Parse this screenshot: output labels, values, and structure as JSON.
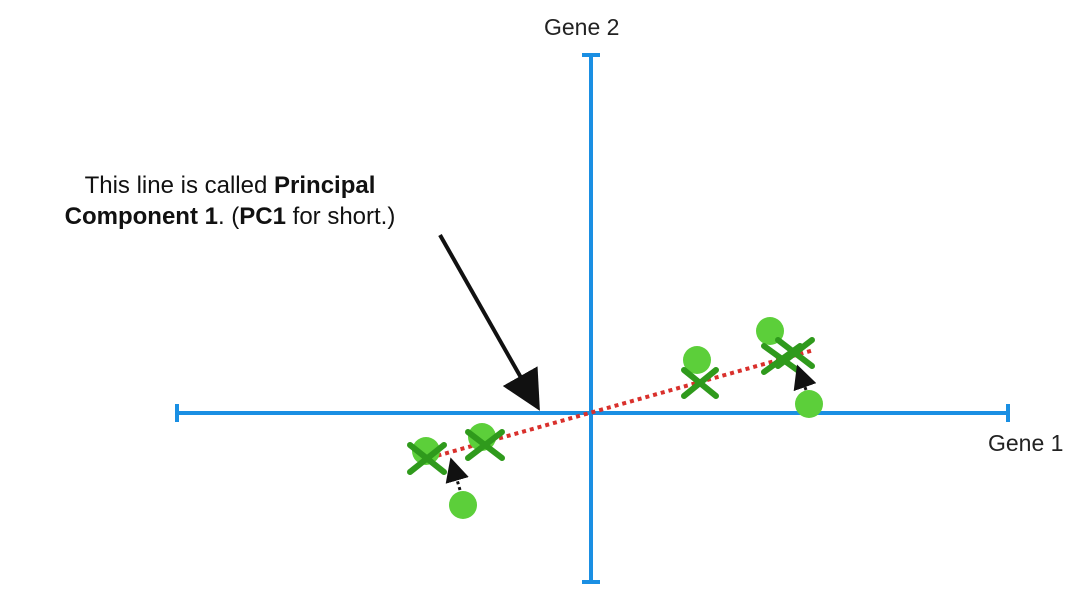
{
  "axes": {
    "x_label": "Gene 1",
    "y_label": "Gene 2",
    "color": "#1a8fe3"
  },
  "callout": {
    "part1": "This line is called ",
    "part2": "Principal",
    "part3": "Component 1",
    "part4": ". (",
    "part5": "PC1",
    "part6": " for short.)"
  },
  "colors": {
    "pc1_line": "#d9302c",
    "point_fill": "#5ccf3a",
    "cross": "#2f9a1c",
    "arrow": "#111111"
  },
  "icons": {
    "projected_point": "x-mark-icon",
    "data_point": "circle-icon"
  }
}
